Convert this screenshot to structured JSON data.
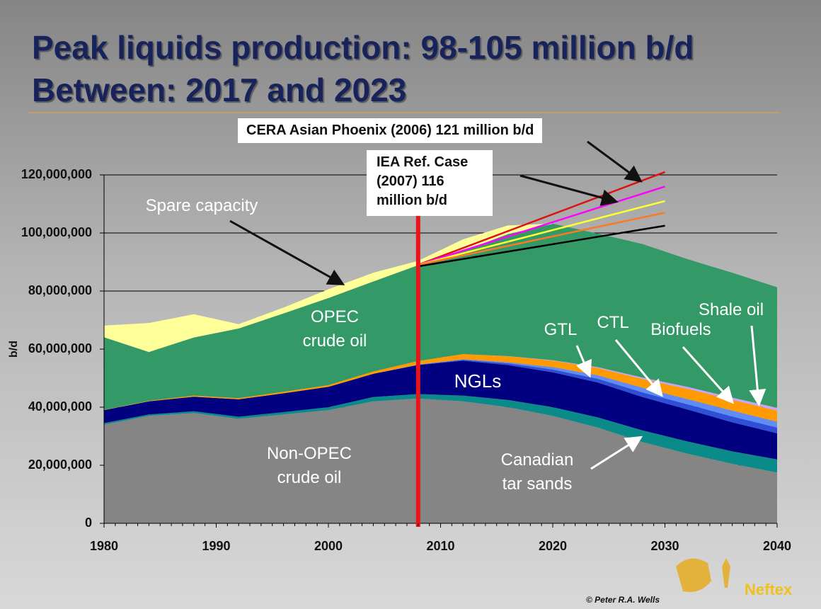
{
  "chart_data": {
    "type": "stacked_area",
    "title": "Peak liquids production: 98-105 million b/d",
    "subtitle": "Between: 2017 and 2023",
    "y_label": "b/d",
    "x": [
      1980,
      1984,
      1988,
      1992,
      1996,
      2000,
      2004,
      2008,
      2012,
      2016,
      2020,
      2024,
      2028,
      2032,
      2036,
      2040
    ],
    "xlim": [
      1980,
      2040
    ],
    "xticks": [
      1980,
      1990,
      2000,
      2010,
      2020,
      2030,
      2040
    ],
    "ylim": [
      0,
      120000000
    ],
    "yticks": [
      0,
      {
        "value": 20000000,
        "label": "20,000,000"
      },
      {
        "value": 40000000,
        "label": "40,000,000"
      },
      {
        "value": 60000000,
        "label": "60,000,000"
      },
      {
        "value": 80000000,
        "label": "80,000,000"
      },
      {
        "value": 100000000,
        "label": "100,000,000"
      },
      {
        "value": 120000000,
        "label": "120,000,000"
      }
    ],
    "grid": true,
    "series": [
      {
        "name": "Non-OPEC crude oil",
        "color": "#858585",
        "values": [
          34000000,
          37000000,
          38000000,
          36000000,
          37500000,
          39000000,
          42000000,
          43000000,
          42000000,
          40000000,
          37000000,
          33000000,
          28000000,
          24000000,
          20500000,
          17500000
        ]
      },
      {
        "name": "Canadian tar sands",
        "color": "#0b8a8a",
        "values": [
          500000,
          500000,
          600000,
          700000,
          800000,
          1000000,
          1500000,
          1500000,
          2000000,
          2500000,
          3000000,
          3500000,
          4000000,
          4200000,
          4300000,
          4500000
        ]
      },
      {
        "name": "NGLs",
        "color": "#000080",
        "values": [
          4500000,
          4500000,
          5000000,
          6000000,
          6500000,
          7000000,
          8000000,
          10000000,
          12000000,
          12000000,
          12000000,
          12000000,
          11500000,
          11000000,
          10000000,
          9000000
        ]
      },
      {
        "name": "GTL",
        "color": "#2e4fd6",
        "values": [
          0,
          0,
          0,
          0,
          0,
          0,
          0,
          100000,
          300000,
          600000,
          1000000,
          1300000,
          1600000,
          1800000,
          2000000,
          2000000
        ]
      },
      {
        "name": "CTL",
        "color": "#5f8cf5",
        "values": [
          0,
          0,
          0,
          0,
          0,
          0,
          0,
          100000,
          200000,
          400000,
          800000,
          1200000,
          1600000,
          1800000,
          2000000,
          2000000
        ]
      },
      {
        "name": "Biofuels",
        "color": "#ff9a00",
        "values": [
          100000,
          200000,
          400000,
          400000,
          500000,
          600000,
          800000,
          1200000,
          1800000,
          2000000,
          2200000,
          2500000,
          3000000,
          3500000,
          3700000,
          3800000
        ]
      },
      {
        "name": "Shale oil",
        "color": "#c9a3f5",
        "values": [
          0,
          0,
          0,
          0,
          0,
          0,
          0,
          0,
          0,
          100000,
          200000,
          300000,
          500000,
          700000,
          800000,
          1000000
        ]
      },
      {
        "name": "OPEC crude oil",
        "color": "#339966",
        "values": [
          25000000,
          16800000,
          20000000,
          24000000,
          27000000,
          30000000,
          31000000,
          33000000,
          35500000,
          42000000,
          47000000,
          46000000,
          46000000,
          44000000,
          43000000,
          41500000
        ]
      },
      {
        "name": "Spare capacity",
        "color": "#ffff99",
        "values": [
          4000000,
          10000000,
          8000000,
          1500000,
          2000000,
          3000000,
          3000000,
          1500000,
          4000000,
          3000000,
          0,
          0,
          0,
          0,
          0,
          0
        ]
      }
    ],
    "scenario_lines": [
      {
        "color": "#e01010",
        "x": [
          2008,
          2030
        ],
        "values": [
          89000000,
          121000000
        ]
      },
      {
        "color": "#ff00ff",
        "x": [
          2008,
          2030
        ],
        "values": [
          89000000,
          116000000
        ]
      },
      {
        "color": "#ffff33",
        "x": [
          2008,
          2030
        ],
        "values": [
          89000000,
          111000000
        ]
      },
      {
        "color": "#ff7722",
        "x": [
          2008,
          2030
        ],
        "values": [
          89000000,
          107000000
        ]
      },
      {
        "color": "#000000",
        "x": [
          2008,
          2030
        ],
        "values": [
          88500000,
          102500000
        ]
      }
    ],
    "marker_x": 2008,
    "marker_color": "#e8141a",
    "annotations": {
      "cera": "CERA Asian Phoenix (2006) 121 million b/d",
      "iea": "IEA Ref. Case (2007) 116 million b/d"
    },
    "copyright": "© Peter R.A. Wells",
    "logo": "Neftex"
  }
}
